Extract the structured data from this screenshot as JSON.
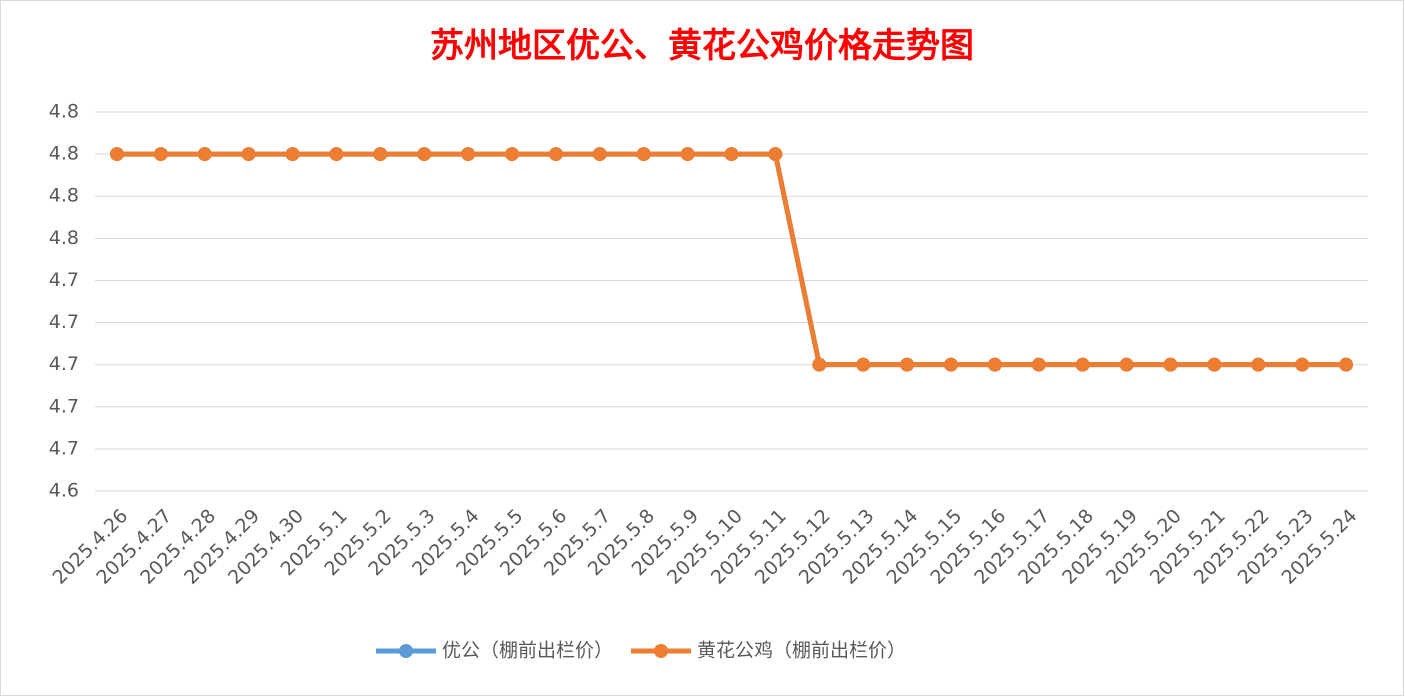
{
  "chart_data": {
    "type": "line",
    "title": "苏州地区优公、黄花公鸡价格走势图",
    "categories": [
      "2025.4.26",
      "2025.4.27",
      "2025.4.28",
      "2025.4.29",
      "2025.4.30",
      "2025.5.1",
      "2025.5.2",
      "2025.5.3",
      "2025.5.4",
      "2025.5.5",
      "2025.5.6",
      "2025.5.7",
      "2025.5.8",
      "2025.5.9",
      "2025.5.10",
      "2025.5.11",
      "2025.5.12",
      "2025.5.13",
      "2025.5.14",
      "2025.5.15",
      "2025.5.16",
      "2025.5.17",
      "2025.5.18",
      "2025.5.19",
      "2025.5.20",
      "2025.5.21",
      "2025.5.22",
      "2025.5.23",
      "2025.5.24"
    ],
    "series": [
      {
        "name": "优公（棚前出栏价）",
        "color": "#5b9bd5",
        "values": [
          4.8,
          4.8,
          4.8,
          4.8,
          4.8,
          4.8,
          4.8,
          4.8,
          4.8,
          4.8,
          4.8,
          4.8,
          4.8,
          4.8,
          4.8,
          4.8,
          4.7,
          4.7,
          4.7,
          4.7,
          4.7,
          4.7,
          4.7,
          4.7,
          4.7,
          4.7,
          4.7,
          4.7,
          4.7
        ]
      },
      {
        "name": "黄花公鸡（棚前出栏价）",
        "color": "#ed7d31",
        "values": [
          4.8,
          4.8,
          4.8,
          4.8,
          4.8,
          4.8,
          4.8,
          4.8,
          4.8,
          4.8,
          4.8,
          4.8,
          4.8,
          4.8,
          4.8,
          4.8,
          4.7,
          4.7,
          4.7,
          4.7,
          4.7,
          4.7,
          4.7,
          4.7,
          4.7,
          4.7,
          4.7,
          4.7,
          4.7
        ]
      }
    ],
    "ylim": [
      4.64,
      4.82
    ],
    "yticks": [
      {
        "value": 4.64,
        "label": "4.6"
      },
      {
        "value": 4.66,
        "label": "4.7"
      },
      {
        "value": 4.68,
        "label": "4.7"
      },
      4.7,
      {
        "value": 4.72,
        "label": "4.7"
      },
      {
        "value": 4.74,
        "label": "4.7"
      },
      {
        "value": 4.76,
        "label": "4.8"
      },
      {
        "value": 4.78,
        "label": "4.8"
      },
      4.8,
      {
        "value": 4.82,
        "label": "4.8"
      }
    ],
    "grid": true
  }
}
